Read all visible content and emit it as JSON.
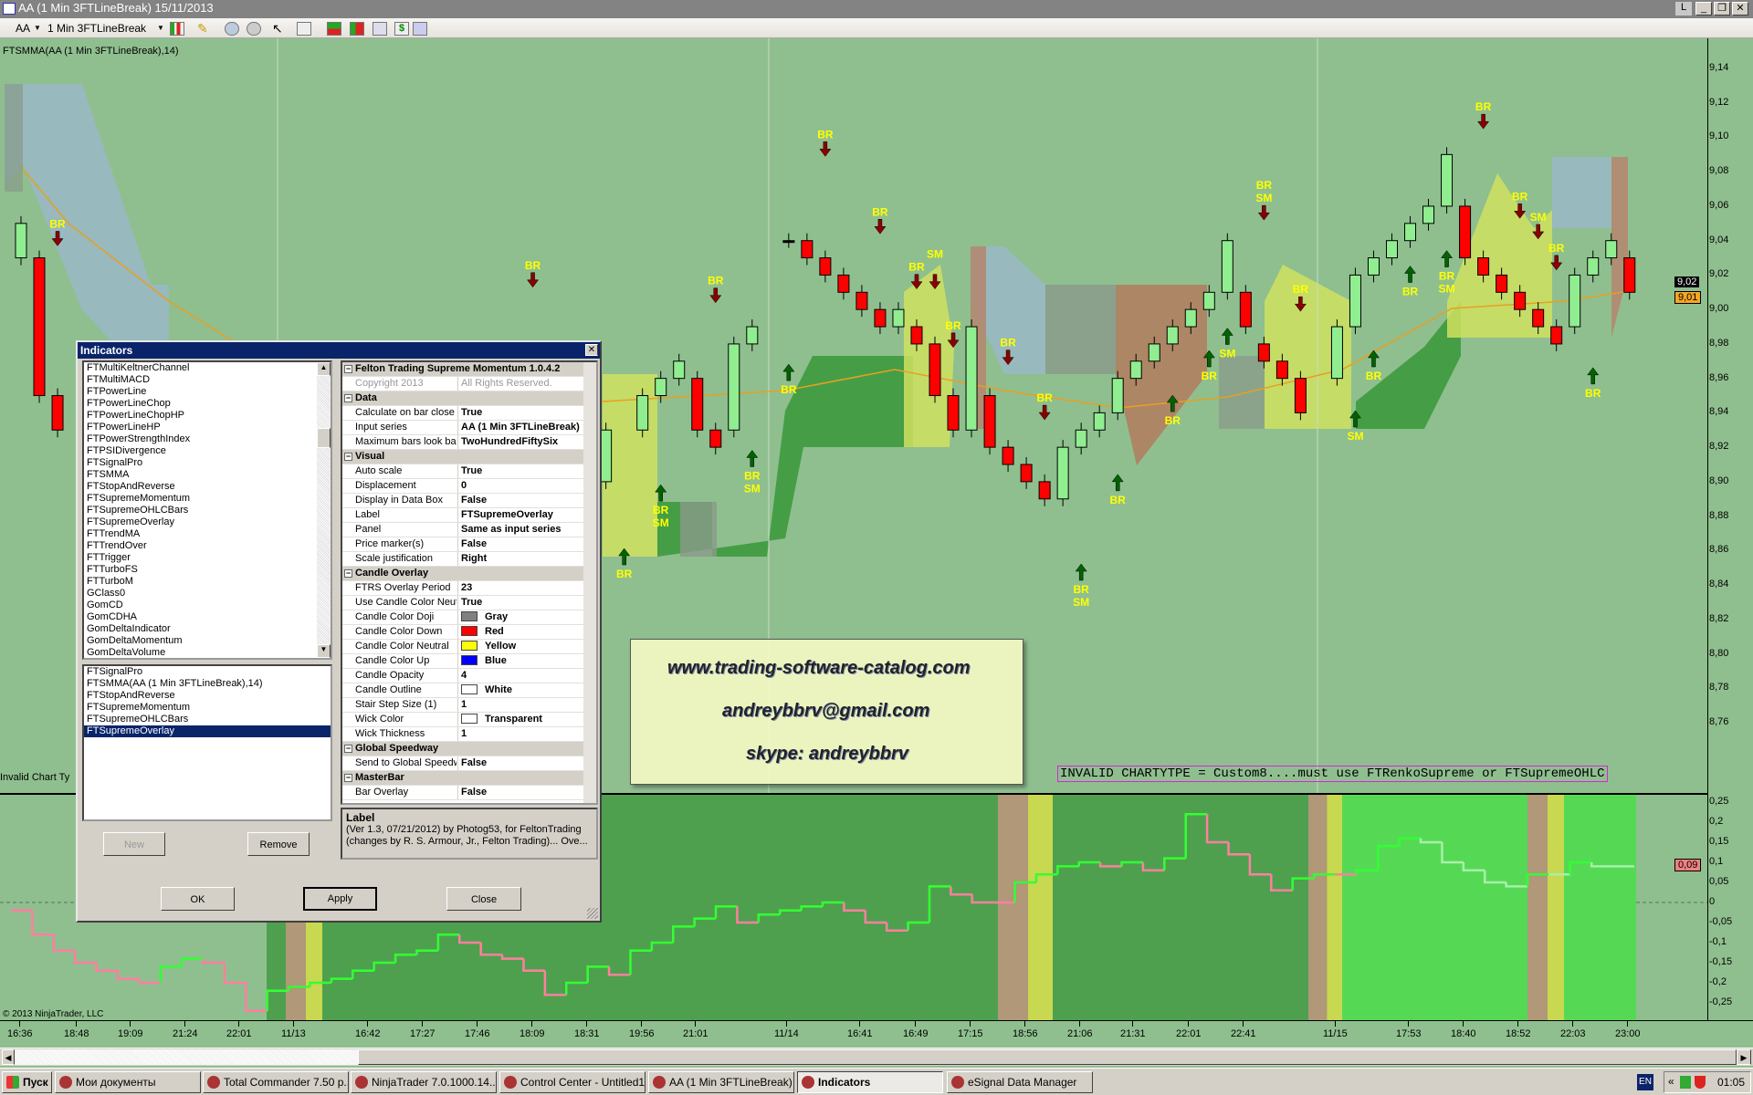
{
  "window": {
    "title": "AA (1 Min 3FTLineBreak)  15/11/2013",
    "controls": [
      "L",
      "_",
      "❐",
      "✕"
    ]
  },
  "toolbar": {
    "instrument": "AA",
    "interval": "1 Min 3FTLineBreak",
    "icons": [
      "bar-type-icon",
      "pencil-icon",
      "zoom-in-icon",
      "zoom-out-icon",
      "pointer-icon",
      "magnifier-icon",
      "strategies-icon",
      "indicators-icon",
      "chart-properties-icon",
      "dollar-icon",
      "data-box-icon"
    ]
  },
  "chart": {
    "indicator_label": "FTSMMA(AA (1 Min 3FTLineBreak),14)",
    "invalid_label": "Invalid Chart Ty",
    "invalid_message": "INVALID CHARTYTPE = Custom8....must use FTRenkoSupreme or FTSupremeOHLC",
    "copyright": "© 2013 NinjaTrader, LLC",
    "colors": {
      "background": "#8fbf8f",
      "up": "#90ee90",
      "down": "#ff0000",
      "smma": "#e8a020",
      "br_label": "#ffff00",
      "down_arrow": "#8b0000",
      "up_arrow": "#006400"
    },
    "price_ticks": [
      "9,14",
      "9,12",
      "9,10",
      "9,08",
      "9,06",
      "9,04",
      "9,02",
      "9,00",
      "8,98",
      "8,96",
      "8,94",
      "8,92",
      "8,90",
      "8,88",
      "8,86",
      "8,84",
      "8,82",
      "8,80",
      "8,78",
      "8,76"
    ],
    "price_tick_values": [
      9.14,
      9.12,
      9.1,
      9.08,
      9.06,
      9.04,
      9.02,
      9.0,
      8.98,
      8.96,
      8.94,
      8.92,
      8.9,
      8.88,
      8.86,
      8.84,
      8.82,
      8.8,
      8.78,
      8.76
    ],
    "last_price_marker": "9,02",
    "smma_marker": "9,01",
    "osc_ticks": [
      "0,25",
      "0,2",
      "0,15",
      "0,1",
      "0,05",
      "0",
      "-0,05",
      "-0,1",
      "-0,15",
      "-0,2",
      "-0,25"
    ],
    "osc_tick_values": [
      0.25,
      0.2,
      0.15,
      0.1,
      0.05,
      0,
      -0.05,
      -0.1,
      -0.15,
      -0.2,
      -0.25
    ],
    "osc_marker": "0,09",
    "time_labels": [
      "16:36",
      "18:48",
      "19:09",
      "21:24",
      "22:01",
      "11/13",
      "16:42",
      "17:27",
      "17:46",
      "18:09",
      "18:31",
      "19:56",
      "21:01",
      "11/14",
      "16:41",
      "16:49",
      "17:15",
      "18:56",
      "21:06",
      "21:31",
      "22:01",
      "22:41",
      "11/15",
      "17:53",
      "18:40",
      "18:52",
      "22:03",
      "23:00"
    ],
    "candles": [
      {
        "bar": 0,
        "o": 9.03,
        "c": 9.05
      },
      {
        "bar": 1,
        "o": 9.03,
        "c": 8.95
      },
      {
        "bar": 2,
        "o": 8.95,
        "c": 8.93
      },
      {
        "bar": 32,
        "o": 8.9,
        "c": 8.93
      },
      {
        "bar": 34,
        "o": 8.93,
        "c": 8.95
      },
      {
        "bar": 35,
        "o": 8.95,
        "c": 8.96
      },
      {
        "bar": 36,
        "o": 8.96,
        "c": 8.97
      },
      {
        "bar": 37,
        "o": 8.96,
        "c": 8.93
      },
      {
        "bar": 38,
        "o": 8.93,
        "c": 8.92
      },
      {
        "bar": 39,
        "o": 8.93,
        "c": 8.98
      },
      {
        "bar": 40,
        "o": 8.98,
        "c": 8.99
      },
      {
        "bar": 42,
        "o": 9.04,
        "c": 9.04
      },
      {
        "bar": 43,
        "o": 9.04,
        "c": 9.03
      },
      {
        "bar": 44,
        "o": 9.03,
        "c": 9.02
      },
      {
        "bar": 45,
        "o": 9.02,
        "c": 9.01
      },
      {
        "bar": 46,
        "o": 9.01,
        "c": 9.0
      },
      {
        "bar": 47,
        "o": 9.0,
        "c": 8.99
      },
      {
        "bar": 48,
        "o": 8.99,
        "c": 9.0
      },
      {
        "bar": 49,
        "o": 8.99,
        "c": 8.98
      },
      {
        "bar": 50,
        "o": 8.98,
        "c": 8.95
      },
      {
        "bar": 51,
        "o": 8.95,
        "c": 8.93
      },
      {
        "bar": 52,
        "o": 8.93,
        "c": 8.99
      },
      {
        "bar": 53,
        "o": 8.95,
        "c": 8.92
      },
      {
        "bar": 54,
        "o": 8.92,
        "c": 8.91
      },
      {
        "bar": 55,
        "o": 8.91,
        "c": 8.9
      },
      {
        "bar": 56,
        "o": 8.9,
        "c": 8.89
      },
      {
        "bar": 57,
        "o": 8.89,
        "c": 8.92
      },
      {
        "bar": 58,
        "o": 8.92,
        "c": 8.93
      },
      {
        "bar": 59,
        "o": 8.93,
        "c": 8.94
      },
      {
        "bar": 60,
        "o": 8.94,
        "c": 8.96
      },
      {
        "bar": 61,
        "o": 8.96,
        "c": 8.97
      },
      {
        "bar": 62,
        "o": 8.97,
        "c": 8.98
      },
      {
        "bar": 63,
        "o": 8.98,
        "c": 8.99
      },
      {
        "bar": 64,
        "o": 8.99,
        "c": 9.0
      },
      {
        "bar": 65,
        "o": 9.0,
        "c": 9.01
      },
      {
        "bar": 66,
        "o": 9.01,
        "c": 9.04
      },
      {
        "bar": 67,
        "o": 9.01,
        "c": 8.99
      },
      {
        "bar": 68,
        "o": 8.98,
        "c": 8.97
      },
      {
        "bar": 69,
        "o": 8.97,
        "c": 8.96
      },
      {
        "bar": 70,
        "o": 8.96,
        "c": 8.94
      },
      {
        "bar": 72,
        "o": 8.96,
        "c": 8.99
      },
      {
        "bar": 73,
        "o": 8.99,
        "c": 9.02
      },
      {
        "bar": 74,
        "o": 9.02,
        "c": 9.03
      },
      {
        "bar": 75,
        "o": 9.03,
        "c": 9.04
      },
      {
        "bar": 76,
        "o": 9.04,
        "c": 9.05
      },
      {
        "bar": 77,
        "o": 9.05,
        "c": 9.06
      },
      {
        "bar": 78,
        "o": 9.06,
        "c": 9.09
      },
      {
        "bar": 79,
        "o": 9.06,
        "c": 9.03
      },
      {
        "bar": 80,
        "o": 9.03,
        "c": 9.02
      },
      {
        "bar": 81,
        "o": 9.02,
        "c": 9.01
      },
      {
        "bar": 82,
        "o": 9.01,
        "c": 9.0
      },
      {
        "bar": 83,
        "o": 9.0,
        "c": 8.99
      },
      {
        "bar": 84,
        "o": 8.99,
        "c": 8.98
      },
      {
        "bar": 85,
        "o": 8.99,
        "c": 9.02
      },
      {
        "bar": 86,
        "o": 9.02,
        "c": 9.03
      },
      {
        "bar": 87,
        "o": 9.03,
        "c": 9.04
      },
      {
        "bar": 88,
        "o": 9.03,
        "c": 9.01
      }
    ],
    "signals": [
      {
        "bar": 2,
        "dir": "down",
        "price": 9.038,
        "labels": [
          "BR"
        ]
      },
      {
        "bar": 28,
        "dir": "down",
        "price": 9.014,
        "labels": [
          "BR"
        ]
      },
      {
        "bar": 33,
        "dir": "up",
        "price": 8.857,
        "labels": [
          "BR"
        ]
      },
      {
        "bar": 35,
        "dir": "up",
        "price": 8.894,
        "labels": [
          "BR",
          "SM"
        ]
      },
      {
        "bar": 38,
        "dir": "down",
        "price": 9.005,
        "labels": [
          "BR"
        ]
      },
      {
        "bar": 40,
        "dir": "up",
        "price": 8.914,
        "labels": [
          "BR",
          "SM"
        ]
      },
      {
        "bar": 42,
        "dir": "up",
        "price": 8.964,
        "labels": [
          "BR"
        ]
      },
      {
        "bar": 44,
        "dir": "down",
        "price": 9.09,
        "labels": [
          "BR"
        ]
      },
      {
        "bar": 47,
        "dir": "down",
        "price": 9.045,
        "labels": [
          "BR"
        ]
      },
      {
        "bar": 49,
        "dir": "down",
        "price": 9.013,
        "labels": [
          "BR"
        ]
      },
      {
        "bar": 50,
        "dir": "down",
        "price": 9.013,
        "labels": [
          "SM"
        ]
      },
      {
        "bar": 51,
        "dir": "down",
        "price": 8.979,
        "labels": [
          "BR"
        ]
      },
      {
        "bar": 54,
        "dir": "down",
        "price": 8.969,
        "labels": [
          "BR"
        ]
      },
      {
        "bar": 56,
        "dir": "down",
        "price": 8.937,
        "labels": [
          "BR"
        ]
      },
      {
        "bar": 58,
        "dir": "up",
        "price": 8.848,
        "labels": [
          "BR",
          "SM"
        ]
      },
      {
        "bar": 60,
        "dir": "up",
        "price": 8.9,
        "labels": [
          "BR"
        ]
      },
      {
        "bar": 63,
        "dir": "up",
        "price": 8.946,
        "labels": [
          "BR"
        ]
      },
      {
        "bar": 65,
        "dir": "up",
        "price": 8.972,
        "labels": [
          "BR"
        ]
      },
      {
        "bar": 66,
        "dir": "up",
        "price": 8.985,
        "labels": [
          "SM"
        ]
      },
      {
        "bar": 68,
        "dir": "down",
        "price": 9.053,
        "labels": [
          "BR",
          "SM"
        ]
      },
      {
        "bar": 70,
        "dir": "down",
        "price": 9.0,
        "labels": [
          "BR"
        ]
      },
      {
        "bar": 73,
        "dir": "up",
        "price": 8.937,
        "labels": [
          "SM"
        ]
      },
      {
        "bar": 74,
        "dir": "up",
        "price": 8.972,
        "labels": [
          "BR"
        ]
      },
      {
        "bar": 76,
        "dir": "up",
        "price": 9.021,
        "labels": [
          "BR"
        ]
      },
      {
        "bar": 78,
        "dir": "up",
        "price": 9.03,
        "labels": [
          "BR",
          "SM"
        ]
      },
      {
        "bar": 80,
        "dir": "down",
        "price": 9.106,
        "labels": [
          "BR"
        ]
      },
      {
        "bar": 82,
        "dir": "down",
        "price": 9.054,
        "labels": [
          "BR"
        ]
      },
      {
        "bar": 83,
        "dir": "down",
        "price": 9.042,
        "labels": [
          "SM"
        ]
      },
      {
        "bar": 84,
        "dir": "down",
        "price": 9.024,
        "labels": [
          "BR"
        ]
      },
      {
        "bar": 86,
        "dir": "up",
        "price": 8.962,
        "labels": [
          "BR"
        ]
      }
    ],
    "oscillator": [
      -0.02,
      -0.08,
      -0.12,
      -0.15,
      -0.17,
      -0.19,
      -0.2,
      -0.16,
      -0.14,
      -0.15,
      -0.2,
      -0.27,
      -0.22,
      -0.21,
      -0.2,
      -0.19,
      -0.17,
      -0.15,
      -0.13,
      -0.12,
      -0.08,
      -0.1,
      -0.13,
      -0.14,
      -0.17,
      -0.23,
      -0.2,
      -0.16,
      -0.18,
      -0.12,
      -0.1,
      -0.06,
      -0.04,
      -0.01,
      -0.05,
      -0.03,
      -0.02,
      -0.01,
      0,
      -0.02,
      -0.05,
      -0.07,
      -0.05,
      0.04,
      0.02,
      0,
      0,
      0.05,
      0.07,
      0.09,
      0.1,
      0.09,
      0.1,
      0.08,
      0.11,
      0.22,
      0.15,
      0.12,
      0.07,
      0.03,
      0.06,
      0.07,
      0.07,
      0.08,
      0.14,
      0.16,
      0.15,
      0.1,
      0.08,
      0.05,
      0.04,
      0.07,
      0.07,
      0.1,
      0.09,
      0.09
    ]
  },
  "dialog": {
    "title": "Indicators",
    "available": [
      "FTMultiKeltnerChannel",
      "FTMultiMACD",
      "FTPowerLine",
      "FTPowerLineChop",
      "FTPowerLineChopHP",
      "FTPowerLineHP",
      "FTPowerStrengthIndex",
      "FTPSIDivergence",
      "FTSignalPro",
      "FTSMMA",
      "FTStopAndReverse",
      "FTSupremeMomentum",
      "FTSupremeOHLCBars",
      "FTSupremeOverlay",
      "FTTrendMA",
      "FTTrendOver",
      "FTTrigger",
      "FTTurboFS",
      "FTTurboM",
      "GClass0",
      "GomCD",
      "GomCDHA",
      "GomDeltaIndicator",
      "GomDeltaMomentum",
      "GomDeltaVolume"
    ],
    "applied": [
      "FTSignalPro",
      "FTSMMA(AA (1 Min 3FTLineBreak),14)",
      "FTStopAndReverse",
      "FTSupremeMomentum",
      "FTSupremeOHLCBars",
      "FTSupremeOverlay"
    ],
    "selected_applied": "FTSupremeOverlay",
    "new_label": "New",
    "remove_label": "Remove",
    "ok_label": "OK",
    "apply_label": "Apply",
    "close_label": "Close",
    "properties": [
      {
        "type": "cat",
        "name": "Felton Trading Supreme Momentum 1.0.4.2"
      },
      {
        "type": "copy",
        "name": "Copyright 2013",
        "value": "All Rights Reserved."
      },
      {
        "type": "cat",
        "name": "Data"
      },
      {
        "name": "Calculate on bar close",
        "value": "True"
      },
      {
        "name": "Input series",
        "value": "AA (1 Min 3FTLineBreak)"
      },
      {
        "name": "Maximum bars look back",
        "value": "TwoHundredFiftySix"
      },
      {
        "type": "cat",
        "name": "Visual"
      },
      {
        "name": "Auto scale",
        "value": "True"
      },
      {
        "name": "Displacement",
        "value": "0"
      },
      {
        "name": "Display in Data Box",
        "value": "False"
      },
      {
        "name": "Label",
        "value": "FTSupremeOverlay"
      },
      {
        "name": "Panel",
        "value": "Same as input series"
      },
      {
        "name": "Price marker(s)",
        "value": "False"
      },
      {
        "name": "Scale justification",
        "value": "Right"
      },
      {
        "type": "cat",
        "name": "Candle Overlay"
      },
      {
        "name": " FTRS Overlay Period",
        "value": "23"
      },
      {
        "name": " Use Candle Color Neutral",
        "value": "True"
      },
      {
        "name": "Candle Color Doji",
        "value": "Gray",
        "swatch": "#808080"
      },
      {
        "name": "Candle Color Down",
        "value": "Red",
        "swatch": "#ff0000"
      },
      {
        "name": "Candle Color Neutral",
        "value": "Yellow",
        "swatch": "#ffff00"
      },
      {
        "name": "Candle Color Up",
        "value": "Blue",
        "swatch": "#0000ff"
      },
      {
        "name": "Candle Opacity",
        "value": "4"
      },
      {
        "name": "Candle Outline",
        "value": "White",
        "swatch": "#ffffff"
      },
      {
        "name": "Stair Step Size (1)",
        "value": "1"
      },
      {
        "name": "Wick Color",
        "value": "Transparent",
        "swatch": "transparent"
      },
      {
        "name": "Wick Thickness",
        "value": "1"
      },
      {
        "type": "cat",
        "name": "Global Speedway"
      },
      {
        "name": "Send to Global Speedway",
        "value": "False"
      },
      {
        "type": "cat",
        "name": "MasterBar"
      },
      {
        "name": "Bar Overlay",
        "value": "False"
      }
    ],
    "desc_title": "Label",
    "desc_text": "(Ver 1.3, 07/21/2012) by Photog53, for FeltonTrading (changes by  R. S.  Armour, Jr., Felton  Trading)... Ove..."
  },
  "watermark": {
    "site": "www.trading-software-catalog.com",
    "email": "andreybbrv@gmail.com",
    "skype": "skype: andreybbrv"
  },
  "taskbar": {
    "start": "Пуск",
    "tasks": [
      "Мои документы",
      "Total Commander 7.50 p...",
      "NinjaTrader 7.0.1000.14...",
      "Control Center - Untitled1",
      "AA (1 Min 3FTLineBreak) ...",
      "Indicators",
      "eSignal Data Manager"
    ],
    "active_task": "Indicators",
    "lang": "EN",
    "clock": "01:05"
  }
}
